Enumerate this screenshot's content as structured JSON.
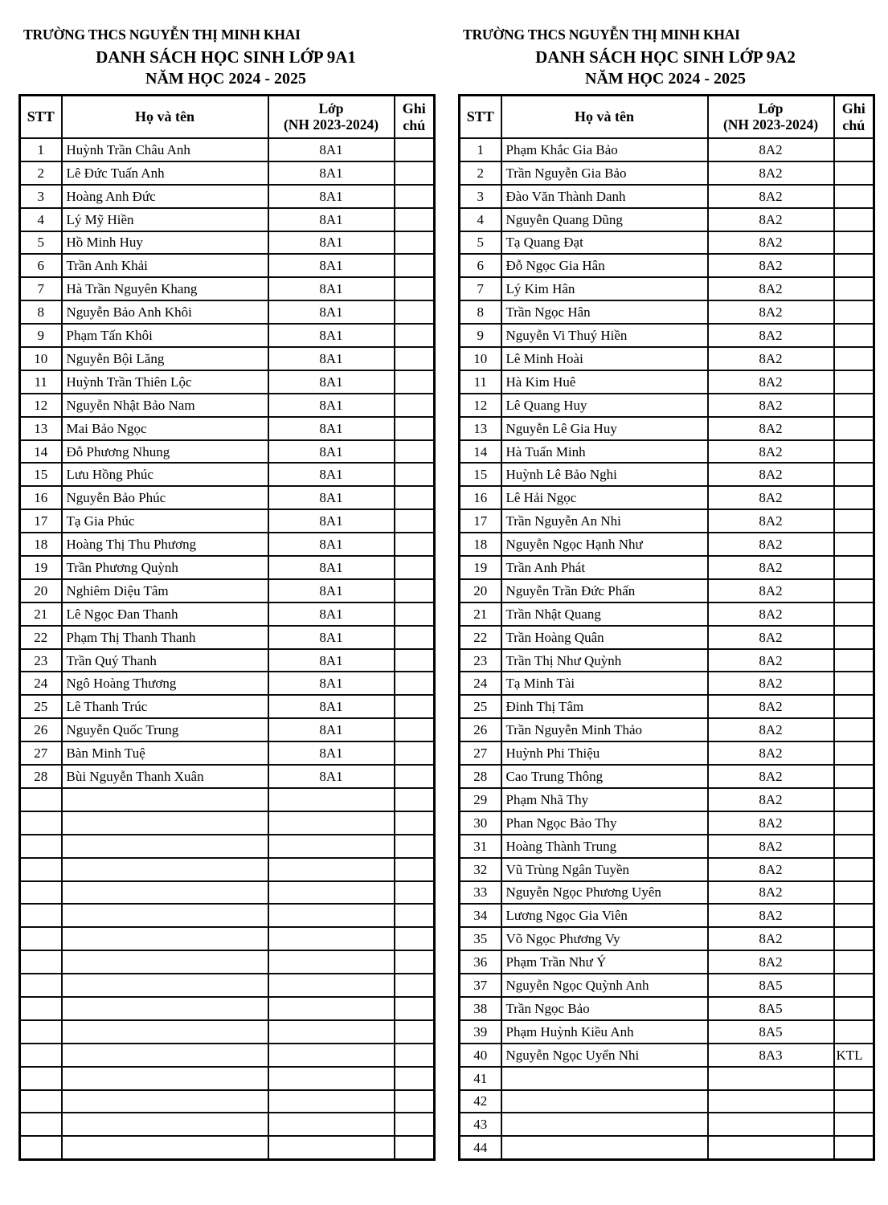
{
  "colors": {
    "background": "#ffffff",
    "text": "#000000",
    "border": "#000000"
  },
  "tables": [
    {
      "school": "TRƯỜNG THCS NGUYỄN THỊ MINH KHAI",
      "title": "DANH SÁCH HỌC SINH LỚP 9A1",
      "year": "NĂM HỌC 2024 - 2025",
      "header": {
        "stt": "STT",
        "name": "Họ và tên",
        "cls_line1": "Lớp",
        "cls_line2": "(NH 2023-2024)",
        "note_line1": "Ghi",
        "note_line2": "chú"
      },
      "rows": [
        [
          "1",
          "Huỳnh Trần Châu Anh",
          "8A1",
          ""
        ],
        [
          "2",
          "Lê Đức Tuấn Anh",
          "8A1",
          ""
        ],
        [
          "3",
          "Hoàng Anh Đức",
          "8A1",
          ""
        ],
        [
          "4",
          "Lý Mỹ Hiền",
          "8A1",
          ""
        ],
        [
          "5",
          "Hồ Minh Huy",
          "8A1",
          ""
        ],
        [
          "6",
          "Trần Anh Khải",
          "8A1",
          ""
        ],
        [
          "7",
          "Hà Trần Nguyên Khang",
          "8A1",
          ""
        ],
        [
          "8",
          "Nguyễn Bảo Anh Khôi",
          "8A1",
          ""
        ],
        [
          "9",
          "Phạm Tấn Khôi",
          "8A1",
          ""
        ],
        [
          "10",
          "Nguyễn Bội Lăng",
          "8A1",
          ""
        ],
        [
          "11",
          "Huỳnh Trần Thiên Lộc",
          "8A1",
          ""
        ],
        [
          "12",
          "Nguyễn Nhật Bảo Nam",
          "8A1",
          ""
        ],
        [
          "13",
          "Mai Bảo Ngọc",
          "8A1",
          ""
        ],
        [
          "14",
          "Đỗ Phương Nhung",
          "8A1",
          ""
        ],
        [
          "15",
          "Lưu Hồng Phúc",
          "8A1",
          ""
        ],
        [
          "16",
          "Nguyễn Bảo Phúc",
          "8A1",
          ""
        ],
        [
          "17",
          "Tạ Gia Phúc",
          "8A1",
          ""
        ],
        [
          "18",
          "Hoàng Thị Thu Phương",
          "8A1",
          ""
        ],
        [
          "19",
          "Trần Phương Quỳnh",
          "8A1",
          ""
        ],
        [
          "20",
          "Nghiêm Diệu Tâm",
          "8A1",
          ""
        ],
        [
          "21",
          "Lê Ngọc Đan Thanh",
          "8A1",
          ""
        ],
        [
          "22",
          "Phạm Thị Thanh Thanh",
          "8A1",
          ""
        ],
        [
          "23",
          "Trần Quý Thanh",
          "8A1",
          ""
        ],
        [
          "24",
          "Ngô Hoàng Thương",
          "8A1",
          ""
        ],
        [
          "25",
          "Lê Thanh Trúc",
          "8A1",
          ""
        ],
        [
          "26",
          "Nguyễn Quốc Trung",
          "8A1",
          ""
        ],
        [
          "27",
          "Bàn Minh Tuệ",
          "8A1",
          ""
        ],
        [
          "28",
          "Bùi Nguyễn Thanh Xuân",
          "8A1",
          ""
        ],
        [
          "",
          "",
          "",
          ""
        ],
        [
          "",
          "",
          "",
          ""
        ],
        [
          "",
          "",
          "",
          ""
        ],
        [
          "",
          "",
          "",
          ""
        ],
        [
          "",
          "",
          "",
          ""
        ],
        [
          "",
          "",
          "",
          ""
        ],
        [
          "",
          "",
          "",
          ""
        ],
        [
          "",
          "",
          "",
          ""
        ],
        [
          "",
          "",
          "",
          ""
        ],
        [
          "",
          "",
          "",
          ""
        ],
        [
          "",
          "",
          "",
          ""
        ],
        [
          "",
          "",
          "",
          ""
        ],
        [
          "",
          "",
          "",
          ""
        ],
        [
          "",
          "",
          "",
          ""
        ],
        [
          "",
          "",
          "",
          ""
        ],
        [
          "",
          "",
          "",
          ""
        ]
      ]
    },
    {
      "school": "TRƯỜNG THCS NGUYỄN THỊ MINH KHAI",
      "title": "DANH SÁCH HỌC SINH LỚP 9A2",
      "year": "NĂM HỌC 2024 - 2025",
      "header": {
        "stt": "STT",
        "name": "Họ và tên",
        "cls_line1": "Lớp",
        "cls_line2": "(NH 2023-2024)",
        "note_line1": "Ghi",
        "note_line2": "chú"
      },
      "rows": [
        [
          "1",
          "Phạm Khắc Gia Bảo",
          "8A2",
          ""
        ],
        [
          "2",
          "Trần Nguyễn Gia Bảo",
          "8A2",
          ""
        ],
        [
          "3",
          "Đào Văn Thành Danh",
          "8A2",
          ""
        ],
        [
          "4",
          "Nguyễn Quang Dũng",
          "8A2",
          ""
        ],
        [
          "5",
          "Tạ Quang Đạt",
          "8A2",
          ""
        ],
        [
          "6",
          "Đỗ Ngọc Gia Hân",
          "8A2",
          ""
        ],
        [
          "7",
          "Lý Kim Hân",
          "8A2",
          ""
        ],
        [
          "8",
          "Trần Ngọc Hân",
          "8A2",
          ""
        ],
        [
          "9",
          "Nguyễn Vi Thuý Hiền",
          "8A2",
          ""
        ],
        [
          "10",
          "Lê Minh Hoài",
          "8A2",
          ""
        ],
        [
          "11",
          "Hà Kim Huê",
          "8A2",
          ""
        ],
        [
          "12",
          "Lê Quang Huy",
          "8A2",
          ""
        ],
        [
          "13",
          "Nguyễn Lê Gia Huy",
          "8A2",
          ""
        ],
        [
          "14",
          "Hà Tuấn Minh",
          "8A2",
          ""
        ],
        [
          "15",
          "Huỳnh Lê Bảo Nghi",
          "8A2",
          ""
        ],
        [
          "16",
          "Lê Hải Ngọc",
          "8A2",
          ""
        ],
        [
          "17",
          "Trần Nguyễn An Nhi",
          "8A2",
          ""
        ],
        [
          "18",
          "Nguyễn Ngọc Hạnh Như",
          "8A2",
          ""
        ],
        [
          "19",
          "Trần Anh Phát",
          "8A2",
          ""
        ],
        [
          "20",
          "Nguyễn Trần Đức Phấn",
          "8A2",
          ""
        ],
        [
          "21",
          "Trần Nhật Quang",
          "8A2",
          ""
        ],
        [
          "22",
          "Trần Hoàng Quân",
          "8A2",
          ""
        ],
        [
          "23",
          "Trần Thị Như Quỳnh",
          "8A2",
          ""
        ],
        [
          "24",
          "Tạ Minh Tài",
          "8A2",
          ""
        ],
        [
          "25",
          "Đinh Thị Tâm",
          "8A2",
          ""
        ],
        [
          "26",
          "Trần Nguyễn Minh Thảo",
          "8A2",
          ""
        ],
        [
          "27",
          "Huỳnh Phi Thiệu",
          "8A2",
          ""
        ],
        [
          "28",
          "Cao Trung Thông",
          "8A2",
          ""
        ],
        [
          "29",
          "Phạm Nhã Thy",
          "8A2",
          ""
        ],
        [
          "30",
          "Phan Ngọc Bảo Thy",
          "8A2",
          ""
        ],
        [
          "31",
          "Hoàng Thành Trung",
          "8A2",
          ""
        ],
        [
          "32",
          "Vũ Trùng Ngân Tuyền",
          "8A2",
          ""
        ],
        [
          "33",
          "Nguyễn Ngọc Phương Uyên",
          "8A2",
          ""
        ],
        [
          "34",
          "Lương Ngọc Gia Viên",
          "8A2",
          ""
        ],
        [
          "35",
          "Võ Ngọc Phương Vy",
          "8A2",
          ""
        ],
        [
          "36",
          "Phạm Trần Như Ý",
          "8A2",
          ""
        ],
        [
          "37",
          "Nguyễn Ngọc Quỳnh Anh",
          "8A5",
          ""
        ],
        [
          "38",
          "Trần Ngọc Bảo",
          "8A5",
          ""
        ],
        [
          "39",
          "Phạm Huỳnh Kiều Anh",
          "8A5",
          ""
        ],
        [
          "40",
          "Nguyễn Ngọc Uyển Nhi",
          "8A3",
          "KTL"
        ],
        [
          "41",
          "",
          "",
          ""
        ],
        [
          "42",
          "",
          "",
          ""
        ],
        [
          "43",
          "",
          "",
          ""
        ],
        [
          "44",
          "",
          "",
          ""
        ]
      ]
    }
  ]
}
